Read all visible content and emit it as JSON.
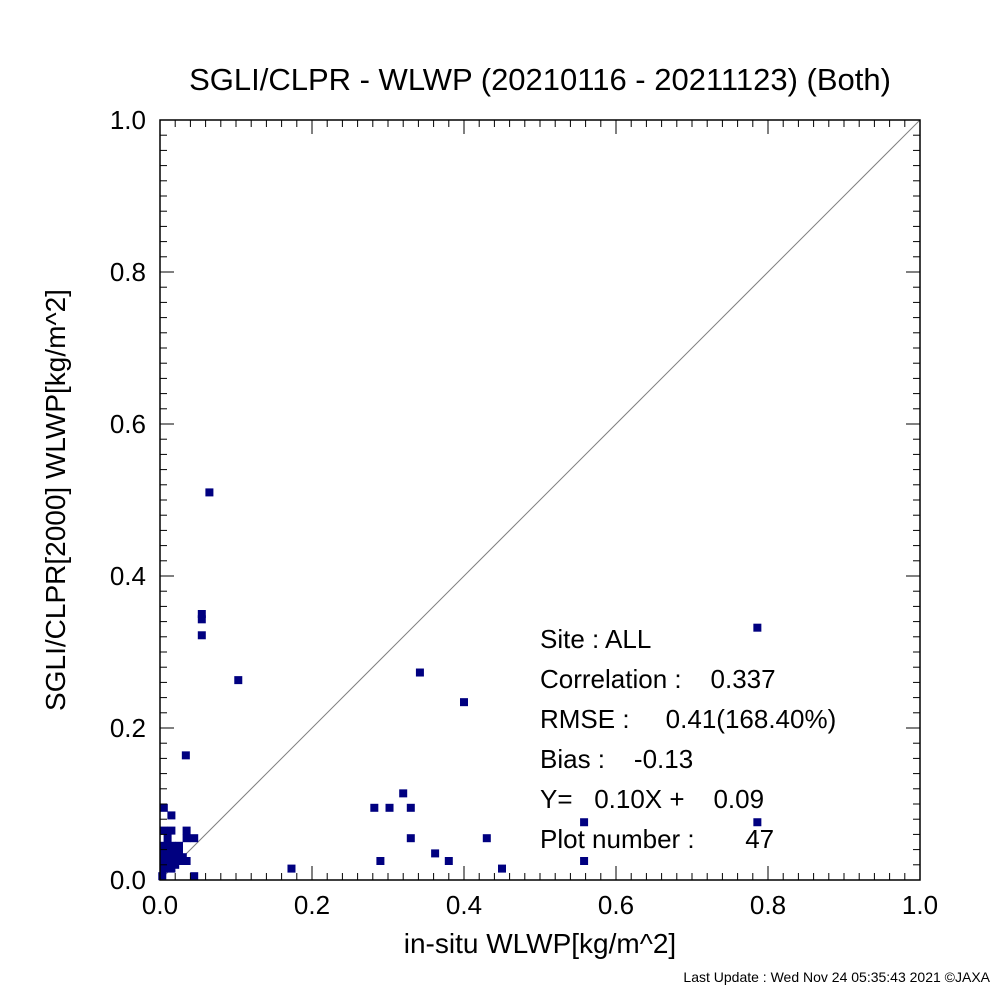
{
  "chart_data": {
    "type": "scatter",
    "title": "SGLI/CLPR - WLWP (20210116 - 20211123) (Both)",
    "xlabel": "in-situ WLWP[kg/m^2]",
    "ylabel": "SGLI/CLPR[2000]    WLWP[kg/m^2]",
    "xlim": [
      0,
      1.0
    ],
    "ylim": [
      0,
      1.0
    ],
    "x_ticks": [
      "0.0",
      "0.2",
      "0.4",
      "0.6",
      "0.8",
      "1.0"
    ],
    "y_ticks": [
      "0.0",
      "0.2",
      "0.4",
      "0.6",
      "0.8",
      "1.0"
    ],
    "reference_line": "1:1",
    "grid": false,
    "marker_color": "#000080",
    "line_color": "#808080",
    "points": [
      {
        "x": 0.065,
        "y": 0.51
      },
      {
        "x": 0.055,
        "y": 0.35
      },
      {
        "x": 0.055,
        "y": 0.343
      },
      {
        "x": 0.055,
        "y": 0.322
      },
      {
        "x": 0.103,
        "y": 0.263
      },
      {
        "x": 0.034,
        "y": 0.164
      },
      {
        "x": 0.342,
        "y": 0.273
      },
      {
        "x": 0.4,
        "y": 0.234
      },
      {
        "x": 0.786,
        "y": 0.332
      },
      {
        "x": 0.786,
        "y": 0.076
      },
      {
        "x": 0.32,
        "y": 0.114
      },
      {
        "x": 0.282,
        "y": 0.095
      },
      {
        "x": 0.302,
        "y": 0.095
      },
      {
        "x": 0.33,
        "y": 0.095
      },
      {
        "x": 0.33,
        "y": 0.055
      },
      {
        "x": 0.362,
        "y": 0.035
      },
      {
        "x": 0.38,
        "y": 0.025
      },
      {
        "x": 0.43,
        "y": 0.055
      },
      {
        "x": 0.45,
        "y": 0.015
      },
      {
        "x": 0.29,
        "y": 0.025
      },
      {
        "x": 0.173,
        "y": 0.015
      },
      {
        "x": 0.558,
        "y": 0.076
      },
      {
        "x": 0.558,
        "y": 0.025
      },
      {
        "x": 0.005,
        "y": 0.095
      },
      {
        "x": 0.015,
        "y": 0.085
      },
      {
        "x": 0.005,
        "y": 0.065
      },
      {
        "x": 0.015,
        "y": 0.065
      },
      {
        "x": 0.035,
        "y": 0.065
      },
      {
        "x": 0.035,
        "y": 0.055
      },
      {
        "x": 0.045,
        "y": 0.055
      },
      {
        "x": 0.005,
        "y": 0.045
      },
      {
        "x": 0.015,
        "y": 0.045
      },
      {
        "x": 0.005,
        "y": 0.035
      },
      {
        "x": 0.015,
        "y": 0.035
      },
      {
        "x": 0.025,
        "y": 0.035
      },
      {
        "x": 0.005,
        "y": 0.025
      },
      {
        "x": 0.015,
        "y": 0.025
      },
      {
        "x": 0.025,
        "y": 0.025
      },
      {
        "x": 0.035,
        "y": 0.025
      },
      {
        "x": 0.005,
        "y": 0.015
      },
      {
        "x": 0.015,
        "y": 0.015
      },
      {
        "x": 0.003,
        "y": 0.005
      },
      {
        "x": 0.045,
        "y": 0.005
      },
      {
        "x": 0.025,
        "y": 0.045
      },
      {
        "x": 0.01,
        "y": 0.055
      },
      {
        "x": 0.02,
        "y": 0.02
      },
      {
        "x": 0.03,
        "y": 0.03
      }
    ],
    "stats": {
      "site": "Site : ALL",
      "correlation": "Correlation :    0.337",
      "rmse": "RMSE :     0.41(168.40%)",
      "bias": "Bias :    -0.13",
      "fit": "Y=   0.10X +    0.09",
      "plot_number": "Plot number :       47"
    }
  },
  "footer": "Last Update : Wed Nov 24 05:35:43 2021  ©JAXA"
}
